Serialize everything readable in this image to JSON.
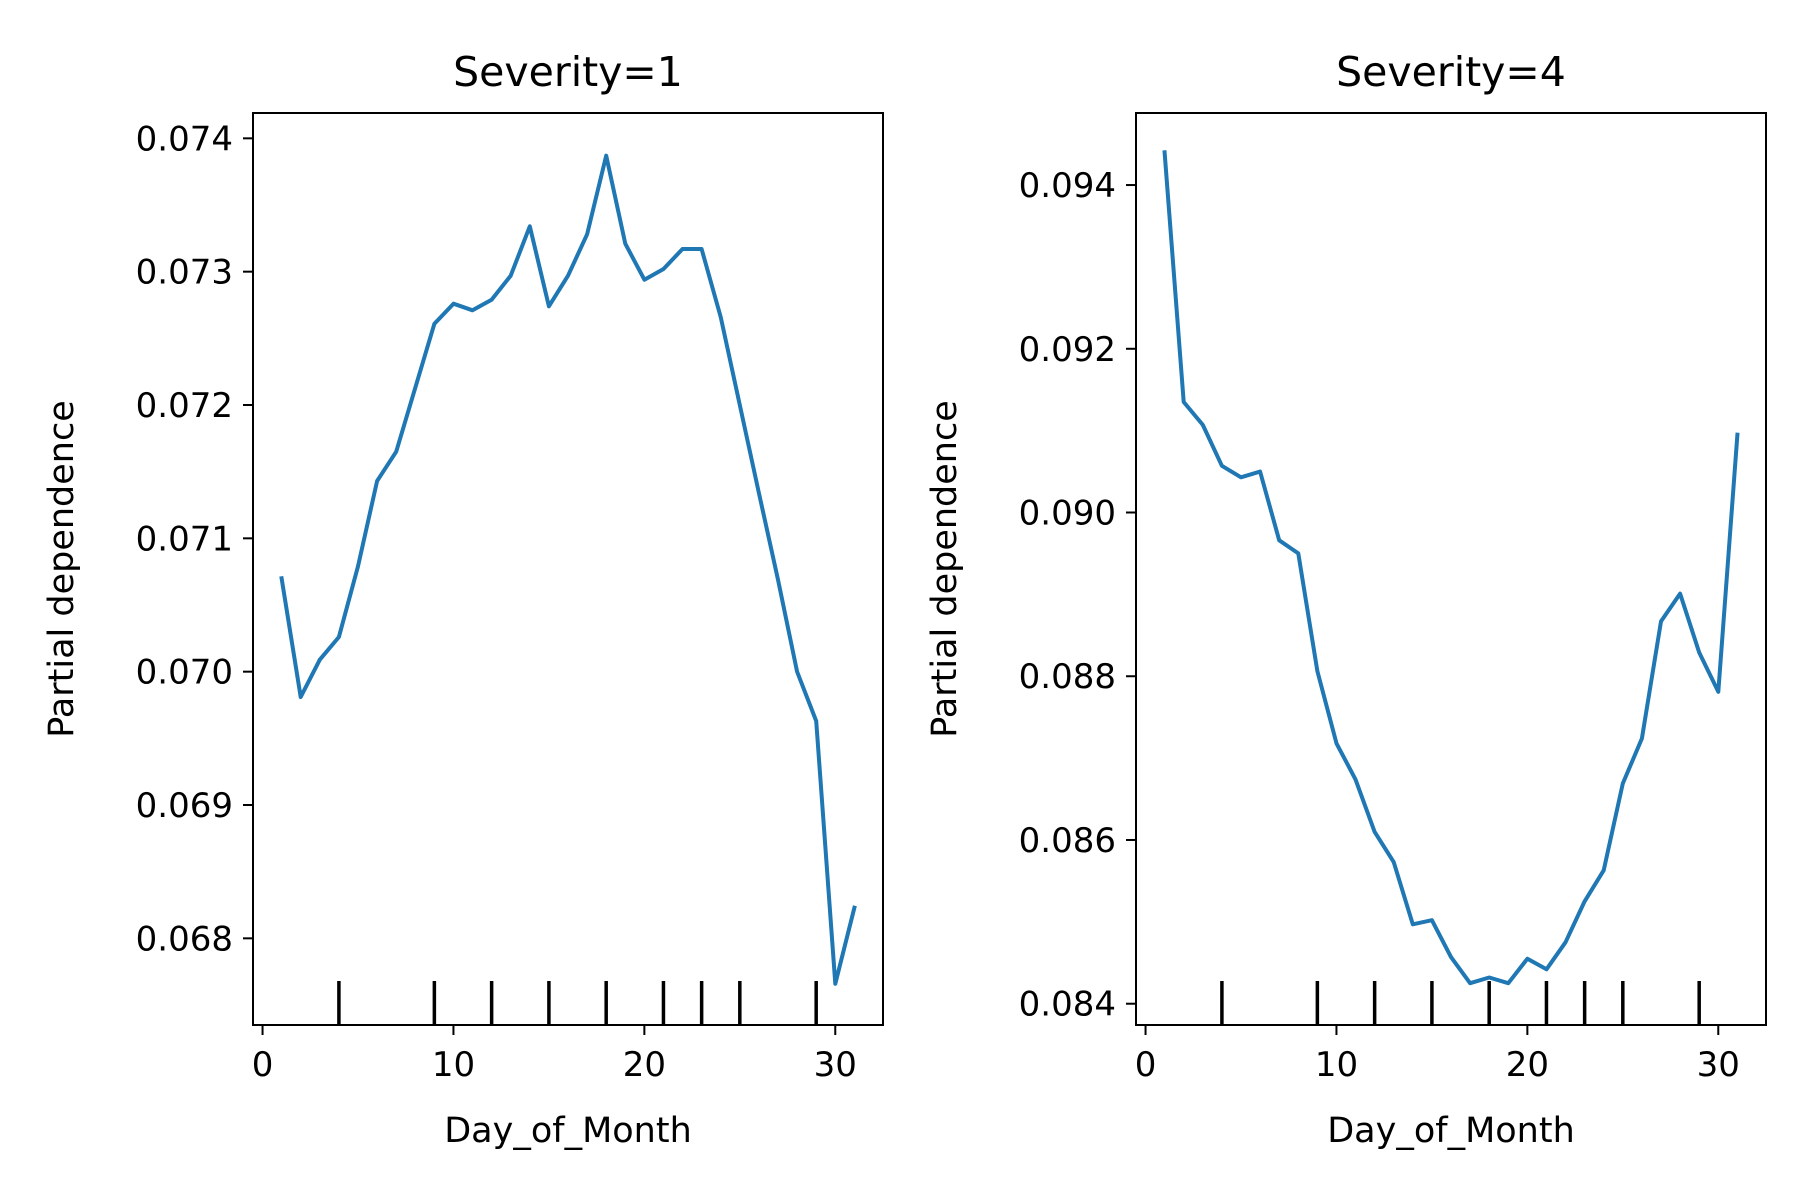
{
  "chart_data": [
    {
      "type": "line",
      "title": "Severity=1",
      "xlabel": "Day_of_Month",
      "ylabel": "Partial dependence",
      "xlim": [
        -0.5,
        32.5
      ],
      "ylim": [
        0.06735,
        0.07419
      ],
      "x_ticks": [
        0,
        10,
        20,
        30
      ],
      "y_ticks": [
        "0.068",
        "0.069",
        "0.070",
        "0.071",
        "0.072",
        "0.073",
        "0.074"
      ],
      "deciles": [
        4,
        9,
        12,
        15,
        18,
        21,
        23,
        25,
        29
      ],
      "series": [
        {
          "color": "#1f77b4",
          "x": [
            1,
            2,
            3,
            4,
            5,
            6,
            7,
            8,
            9,
            10,
            11,
            12,
            13,
            14,
            15,
            16,
            17,
            18,
            19,
            20,
            21,
            22,
            23,
            24,
            25,
            26,
            27,
            28,
            29,
            30,
            31
          ],
          "y": [
            0.0707,
            0.06981,
            0.07009,
            0.07026,
            0.07079,
            0.07143,
            0.07165,
            0.07213,
            0.07261,
            0.07276,
            0.07271,
            0.07279,
            0.07297,
            0.07334,
            0.07274,
            0.07297,
            0.07328,
            0.07387,
            0.07321,
            0.07294,
            0.07302,
            0.07317,
            0.07317,
            0.07266,
            0.072,
            0.07134,
            0.07069,
            0.07,
            0.06963,
            0.06766,
            0.06823
          ]
        }
      ]
    },
    {
      "type": "line",
      "title": "Severity=4",
      "xlabel": "Day_of_Month",
      "ylabel": "Partial dependence",
      "xlim": [
        -0.5,
        32.5
      ],
      "ylim": [
        0.08374,
        0.09488
      ],
      "x_ticks": [
        0,
        10,
        20,
        30
      ],
      "y_ticks": [
        "0.084",
        "0.086",
        "0.088",
        "0.090",
        "0.092",
        "0.094"
      ],
      "deciles": [
        4,
        9,
        12,
        15,
        18,
        21,
        23,
        25,
        29
      ],
      "series": [
        {
          "color": "#1f77b4",
          "x": [
            1,
            2,
            3,
            4,
            5,
            6,
            7,
            8,
            9,
            10,
            11,
            12,
            13,
            14,
            15,
            16,
            17,
            18,
            19,
            20,
            21,
            22,
            23,
            24,
            25,
            26,
            27,
            28,
            29,
            30,
            31
          ],
          "y": [
            0.0944,
            0.09135,
            0.09107,
            0.09057,
            0.09043,
            0.0905,
            0.08966,
            0.0895,
            0.08806,
            0.08718,
            0.08674,
            0.0861,
            0.08573,
            0.08497,
            0.08502,
            0.08457,
            0.08425,
            0.08432,
            0.08425,
            0.08455,
            0.08442,
            0.08475,
            0.08525,
            0.08563,
            0.08669,
            0.08724,
            0.08867,
            0.08901,
            0.08829,
            0.08781,
            0.09095
          ]
        }
      ]
    }
  ]
}
